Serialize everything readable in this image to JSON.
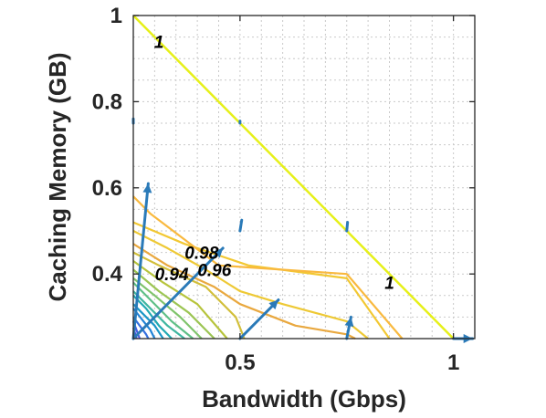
{
  "chart_data": {
    "type": "line",
    "subtype": "contour-with-quiver",
    "title": "",
    "xlabel": "Bandwidth (Gbps)",
    "ylabel": "Caching Memory (GB)",
    "xlim": [
      0.25,
      1.05
    ],
    "ylim": [
      0.25,
      1.0
    ],
    "x_ticks": [
      0.5,
      1
    ],
    "x_tick_labels": [
      "0.5",
      "1"
    ],
    "y_ticks": [
      0.4,
      0.6,
      0.8,
      1
    ],
    "y_tick_labels": [
      "0.4",
      "0.6",
      "0.8",
      "1"
    ],
    "grid": true,
    "grid_style": "dotted",
    "contour_labels": [
      {
        "text": "1",
        "x": 0.31,
        "y": 0.94
      },
      {
        "text": "0.98",
        "x": 0.41,
        "y": 0.45
      },
      {
        "text": "0.96",
        "x": 0.44,
        "y": 0.41
      },
      {
        "text": "0.94",
        "x": 0.34,
        "y": 0.4
      },
      {
        "text": "1",
        "x": 0.85,
        "y": 0.38
      }
    ],
    "contours": [
      {
        "level": 1.0,
        "color": "#e6f019",
        "points": [
          [
            0.25,
            1.0
          ],
          [
            0.5,
            0.75
          ],
          [
            0.75,
            0.5
          ],
          [
            1.0,
            0.25
          ]
        ]
      },
      {
        "level": 0.99,
        "color": "#f2c832",
        "points": [
          [
            0.25,
            0.52
          ],
          [
            0.37,
            0.47
          ],
          [
            0.52,
            0.42
          ],
          [
            0.75,
            0.39
          ],
          [
            0.85,
            0.25
          ]
        ]
      },
      {
        "level": 0.98,
        "color": "#f9b93e",
        "points": [
          [
            0.25,
            0.58
          ],
          [
            0.29,
            0.54
          ],
          [
            0.45,
            0.42
          ],
          [
            0.75,
            0.4
          ],
          [
            0.88,
            0.25
          ]
        ]
      },
      {
        "level": 0.97,
        "color": "#eec935",
        "points": [
          [
            0.25,
            0.5
          ],
          [
            0.33,
            0.46
          ],
          [
            0.42,
            0.41
          ],
          [
            0.5,
            0.36
          ],
          [
            0.6,
            0.33
          ],
          [
            0.75,
            0.29
          ],
          [
            0.8,
            0.25
          ]
        ]
      },
      {
        "level": 0.96,
        "color": "#e9a83f",
        "points": [
          [
            0.25,
            0.47
          ],
          [
            0.33,
            0.42
          ],
          [
            0.44,
            0.37
          ],
          [
            0.5,
            0.33
          ],
          [
            0.63,
            0.28
          ],
          [
            0.75,
            0.26
          ],
          [
            0.77,
            0.25
          ]
        ]
      },
      {
        "level": 0.95,
        "color": "#d2bf3a",
        "points": [
          [
            0.25,
            0.45
          ],
          [
            0.31,
            0.42
          ],
          [
            0.42,
            0.37
          ],
          [
            0.49,
            0.3
          ],
          [
            0.51,
            0.25
          ]
        ]
      },
      {
        "level": 0.94,
        "color": "#b7c43c",
        "points": [
          [
            0.25,
            0.43
          ],
          [
            0.32,
            0.38
          ],
          [
            0.4,
            0.33
          ],
          [
            0.47,
            0.25
          ]
        ]
      },
      {
        "level": 0.93,
        "color": "#9cc553",
        "points": [
          [
            0.25,
            0.41
          ],
          [
            0.31,
            0.36
          ],
          [
            0.38,
            0.31
          ],
          [
            0.44,
            0.25
          ]
        ]
      },
      {
        "level": 0.92,
        "color": "#7fc46c",
        "points": [
          [
            0.25,
            0.39
          ],
          [
            0.3,
            0.35
          ],
          [
            0.36,
            0.3
          ],
          [
            0.41,
            0.25
          ]
        ]
      },
      {
        "level": 0.91,
        "color": "#5fbf86",
        "points": [
          [
            0.25,
            0.38
          ],
          [
            0.29,
            0.34
          ],
          [
            0.34,
            0.29
          ],
          [
            0.39,
            0.25
          ]
        ]
      },
      {
        "level": 0.9,
        "color": "#3fb6a0",
        "points": [
          [
            0.25,
            0.36
          ],
          [
            0.28,
            0.33
          ],
          [
            0.33,
            0.28
          ],
          [
            0.37,
            0.25
          ]
        ]
      },
      {
        "level": 0.89,
        "color": "#22a9b3",
        "points": [
          [
            0.25,
            0.35
          ],
          [
            0.28,
            0.32
          ],
          [
            0.31,
            0.28
          ],
          [
            0.34,
            0.25
          ]
        ]
      },
      {
        "level": 0.88,
        "color": "#1a96c6",
        "points": [
          [
            0.25,
            0.33
          ],
          [
            0.3,
            0.28
          ],
          [
            0.32,
            0.25
          ]
        ]
      },
      {
        "level": 0.87,
        "color": "#2183d6",
        "points": [
          [
            0.25,
            0.32
          ],
          [
            0.29,
            0.27
          ],
          [
            0.3,
            0.25
          ]
        ]
      },
      {
        "level": 0.86,
        "color": "#3570e0",
        "points": [
          [
            0.25,
            0.3
          ],
          [
            0.28,
            0.26
          ],
          [
            0.285,
            0.25
          ]
        ]
      },
      {
        "level": 0.85,
        "color": "#455ce5",
        "points": [
          [
            0.25,
            0.29
          ],
          [
            0.265,
            0.25
          ]
        ]
      },
      {
        "level": 0.84,
        "color": "#4a48e2",
        "points": [
          [
            0.25,
            0.275
          ],
          [
            0.258,
            0.25
          ]
        ]
      }
    ],
    "quiver": {
      "color": "#2a7ab8",
      "vectors": [
        {
          "x": 0.25,
          "y": 0.75,
          "u": 0.0,
          "v": 0.01
        },
        {
          "x": 0.5,
          "y": 0.75,
          "u": 0.0,
          "v": 0.005
        },
        {
          "x": 0.5,
          "y": 0.5,
          "u": 0.004,
          "v": 0.025
        },
        {
          "x": 0.75,
          "y": 0.5,
          "u": 0.002,
          "v": 0.02
        },
        {
          "x": 0.25,
          "y": 0.25,
          "u": 0.035,
          "v": 0.36
        },
        {
          "x": 0.25,
          "y": 0.25,
          "u": 0.21,
          "v": 0.21
        },
        {
          "x": 0.5,
          "y": 0.25,
          "u": 0.09,
          "v": 0.09
        },
        {
          "x": 0.75,
          "y": 0.25,
          "u": 0.01,
          "v": 0.05
        },
        {
          "x": 1.0,
          "y": 0.25,
          "u": 0.045,
          "v": 0.0
        }
      ]
    }
  }
}
